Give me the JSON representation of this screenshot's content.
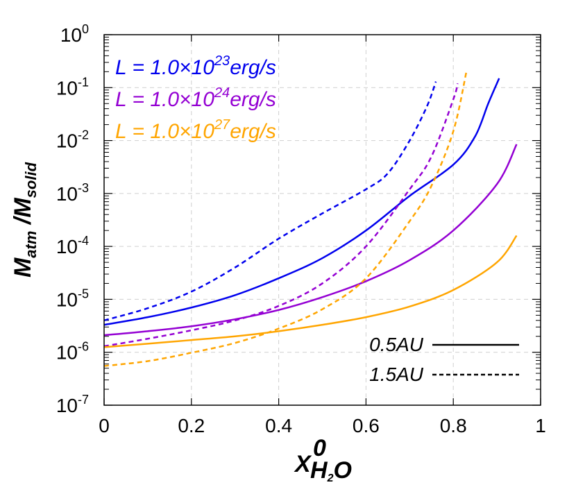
{
  "chart_data": {
    "type": "line",
    "title": "",
    "xlabel": "X^0_{H2O}",
    "xlabel_parts": {
      "base": "X",
      "sup": "0",
      "sub_main": "H",
      "sub_sub": "2",
      "sub_tail": "O"
    },
    "ylabel": "M_atm / M_solid",
    "ylabel_parts": {
      "m1": "M",
      "s1": "atm",
      "slash": " /",
      "m2": "M",
      "s2": "solid"
    },
    "xlim": [
      0,
      1
    ],
    "ylim": [
      1e-07,
      1
    ],
    "yscale": "log",
    "grid": true,
    "x_ticks": [
      "0",
      "0.2",
      "0.4",
      "0.6",
      "0.8",
      "1"
    ],
    "y_ticks": [
      {
        "base": "10",
        "exp": "0"
      },
      {
        "base": "10",
        "exp": "-1"
      },
      {
        "base": "10",
        "exp": "-2"
      },
      {
        "base": "10",
        "exp": "-3"
      },
      {
        "base": "10",
        "exp": "-4"
      },
      {
        "base": "10",
        "exp": "-5"
      },
      {
        "base": "10",
        "exp": "-6"
      },
      {
        "base": "10",
        "exp": "-7"
      }
    ],
    "legend": {
      "position": "upper left",
      "color_entries": [
        {
          "prefix": "L = 1.0×10",
          "exp": "23",
          "suffix": "erg/s",
          "color": "#0000ee"
        },
        {
          "prefix": "L = 1.0×10",
          "exp": "24",
          "suffix": "erg/s",
          "color": "#9400d3"
        },
        {
          "prefix": "L = 1.0×10",
          "exp": "27",
          "suffix": "erg/s",
          "color": "#ffa500"
        }
      ],
      "style_entries": [
        {
          "label": "0.5AU",
          "style": "solid"
        },
        {
          "label": "1.5AU",
          "style": "dashed"
        }
      ]
    },
    "series": [
      {
        "name": "L=1e23, 0.5AU",
        "color": "#0000ee",
        "style": "solid",
        "x": [
          0,
          0.1,
          0.2,
          0.3,
          0.4,
          0.5,
          0.6,
          0.7,
          0.8,
          0.85,
          0.88,
          0.905
        ],
        "y": [
          3.3e-06,
          4.6e-06,
          7e-06,
          1.2e-05,
          2.5e-05,
          6e-05,
          0.0002,
          0.0009,
          0.0035,
          0.012,
          0.05,
          0.15
        ]
      },
      {
        "name": "L=1e23, 1.5AU",
        "color": "#0000ee",
        "style": "dashed",
        "x": [
          0,
          0.1,
          0.2,
          0.3,
          0.4,
          0.5,
          0.6,
          0.65,
          0.7,
          0.74,
          0.76
        ],
        "y": [
          4e-06,
          6.8e-06,
          1.4e-05,
          4e-05,
          0.00014,
          0.00042,
          0.0012,
          0.0024,
          0.01,
          0.045,
          0.13
        ]
      },
      {
        "name": "L=1e24, 0.5AU",
        "color": "#9400d3",
        "style": "solid",
        "x": [
          0,
          0.1,
          0.2,
          0.3,
          0.4,
          0.5,
          0.6,
          0.7,
          0.8,
          0.9,
          0.945
        ],
        "y": [
          2.1e-06,
          2.5e-06,
          3.1e-06,
          4.2e-06,
          6.3e-06,
          1.1e-05,
          2.2e-05,
          5.5e-05,
          0.0002,
          0.0015,
          0.0085
        ]
      },
      {
        "name": "L=1e24, 1.5AU",
        "color": "#9400d3",
        "style": "dashed",
        "x": [
          0,
          0.1,
          0.2,
          0.3,
          0.4,
          0.5,
          0.6,
          0.7,
          0.75,
          0.8,
          0.81
        ],
        "y": [
          1.3e-06,
          1.8e-06,
          2.6e-06,
          4e-06,
          7.5e-06,
          2e-05,
          0.0001,
          0.0012,
          0.005,
          0.06,
          0.12
        ]
      },
      {
        "name": "L=1e27, 0.5AU",
        "color": "#ffa500",
        "style": "solid",
        "x": [
          0,
          0.1,
          0.2,
          0.3,
          0.4,
          0.5,
          0.6,
          0.7,
          0.8,
          0.9,
          0.945
        ],
        "y": [
          1.25e-06,
          1.45e-06,
          1.7e-06,
          2e-06,
          2.5e-06,
          3.3e-06,
          4.6e-06,
          7.3e-06,
          1.5e-05,
          5e-05,
          0.00016
        ]
      },
      {
        "name": "L=1e27, 1.5AU",
        "color": "#ffa500",
        "style": "dashed",
        "x": [
          0,
          0.1,
          0.2,
          0.3,
          0.4,
          0.5,
          0.6,
          0.7,
          0.75,
          0.8,
          0.83
        ],
        "y": [
          5.5e-07,
          6.8e-07,
          9.8e-07,
          1.5e-06,
          2.8e-06,
          6.5e-06,
          2.5e-05,
          0.0003,
          0.0014,
          0.015,
          0.2
        ]
      }
    ]
  }
}
